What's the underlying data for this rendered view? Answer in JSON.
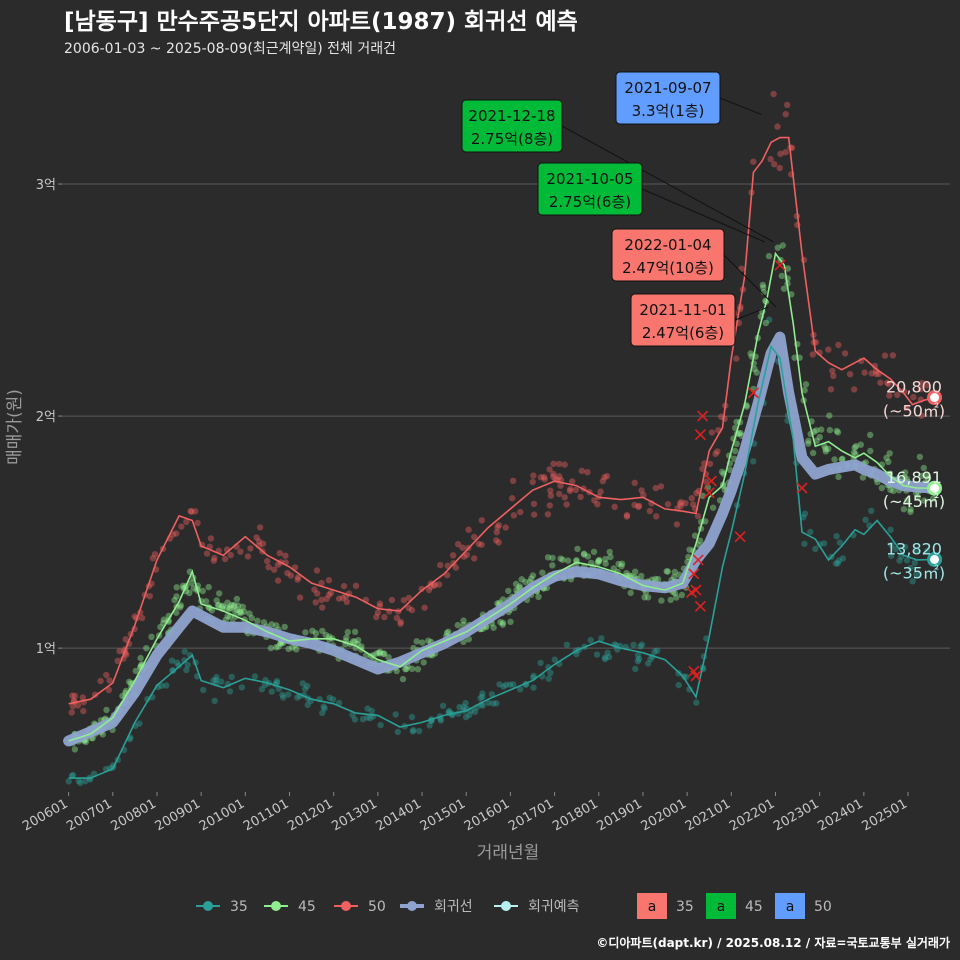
{
  "title": "[남동구] 만수주공5단지 아파트(1987) 회귀선 예측",
  "subtitle": "2006-01-03 ~ 2025-08-09(최근계약일) 전체 거래건",
  "credit": "©디아파트(dapt.kr) / 2025.08.12 / 자료=국토교통부 실거래가",
  "colors": {
    "s35": "#2aa198",
    "s45": "#90ee90",
    "s50": "#f06060",
    "regression": "#8ea3cf",
    "forecast": "#b7f0f0",
    "label35": "#9fe7e7",
    "label45": "#dff5df",
    "label50": "#f3d7d7",
    "box35": "#f8766d",
    "box45": "#00ba38",
    "box50": "#619cff",
    "grid": "#5a5a5a",
    "bg": "#2b2b2b"
  },
  "chart_data": {
    "type": "line",
    "xlabel": "거래년월",
    "ylabel": "매매가(원)",
    "x_ticks": [
      "200601",
      "200701",
      "200801",
      "200901",
      "201001",
      "201101",
      "201201",
      "201301",
      "201401",
      "201501",
      "201601",
      "201701",
      "201801",
      "201901",
      "202001",
      "202101",
      "202201",
      "202301",
      "202401",
      "202501"
    ],
    "y_ticks": [
      {
        "value": 10000,
        "label": "1억"
      },
      {
        "value": 20000,
        "label": "2억"
      },
      {
        "value": 30000,
        "label": "3억"
      }
    ],
    "x_range": [
      2005.85,
      2025.95
    ],
    "y_range": [
      3800,
      35000
    ],
    "series": [
      {
        "name": "35",
        "key": "s35",
        "points": [
          [
            2006.0,
            4400
          ],
          [
            2006.5,
            4400
          ],
          [
            2007.0,
            4800
          ],
          [
            2007.5,
            6800
          ],
          [
            2008.0,
            8400
          ],
          [
            2008.5,
            9200
          ],
          [
            2008.8,
            9700
          ],
          [
            2009.0,
            8600
          ],
          [
            2009.5,
            8300
          ],
          [
            2010.0,
            8700
          ],
          [
            2010.5,
            8500
          ],
          [
            2011.0,
            8200
          ],
          [
            2011.5,
            7800
          ],
          [
            2012.0,
            7600
          ],
          [
            2012.5,
            7200
          ],
          [
            2013.0,
            7100
          ],
          [
            2013.5,
            6600
          ],
          [
            2014.0,
            6800
          ],
          [
            2014.5,
            7100
          ],
          [
            2015.0,
            7300
          ],
          [
            2015.5,
            7800
          ],
          [
            2016.0,
            8200
          ],
          [
            2016.5,
            8600
          ],
          [
            2017.0,
            9300
          ],
          [
            2017.5,
            9900
          ],
          [
            2018.0,
            10300
          ],
          [
            2018.5,
            10000
          ],
          [
            2019.0,
            9800
          ],
          [
            2019.5,
            9500
          ],
          [
            2019.9,
            8800
          ],
          [
            2020.2,
            7900
          ],
          [
            2020.5,
            10500
          ],
          [
            2020.8,
            13500
          ],
          [
            2021.0,
            15000
          ],
          [
            2021.3,
            17500
          ],
          [
            2021.6,
            20500
          ],
          [
            2021.9,
            23000
          ],
          [
            2022.1,
            22500
          ],
          [
            2022.4,
            19000
          ],
          [
            2022.6,
            15000
          ],
          [
            2022.9,
            14700
          ],
          [
            2023.2,
            13800
          ],
          [
            2023.5,
            14400
          ],
          [
            2023.8,
            15100
          ],
          [
            2024.0,
            14900
          ],
          [
            2024.3,
            15500
          ],
          [
            2024.6,
            14800
          ],
          [
            2024.9,
            14000
          ],
          [
            2025.2,
            13800
          ],
          [
            2025.6,
            13820
          ]
        ]
      },
      {
        "name": "45",
        "key": "s45",
        "points": [
          [
            2006.0,
            6000
          ],
          [
            2006.5,
            6300
          ],
          [
            2007.0,
            7000
          ],
          [
            2007.5,
            8600
          ],
          [
            2008.0,
            10400
          ],
          [
            2008.5,
            12000
          ],
          [
            2008.8,
            13300
          ],
          [
            2009.0,
            11900
          ],
          [
            2009.5,
            11600
          ],
          [
            2010.0,
            11200
          ],
          [
            2010.5,
            10700
          ],
          [
            2011.0,
            10300
          ],
          [
            2011.5,
            10400
          ],
          [
            2012.0,
            10400
          ],
          [
            2012.5,
            10100
          ],
          [
            2013.0,
            9500
          ],
          [
            2013.5,
            9200
          ],
          [
            2014.0,
            9900
          ],
          [
            2014.5,
            10300
          ],
          [
            2015.0,
            10700
          ],
          [
            2015.5,
            11300
          ],
          [
            2016.0,
            11900
          ],
          [
            2016.5,
            12600
          ],
          [
            2017.0,
            13200
          ],
          [
            2017.5,
            13700
          ],
          [
            2018.0,
            13500
          ],
          [
            2018.5,
            13200
          ],
          [
            2019.0,
            12700
          ],
          [
            2019.5,
            12500
          ],
          [
            2019.9,
            12800
          ],
          [
            2020.2,
            14500
          ],
          [
            2020.5,
            16500
          ],
          [
            2020.8,
            17000
          ],
          [
            2021.0,
            18500
          ],
          [
            2021.3,
            20500
          ],
          [
            2021.6,
            23500
          ],
          [
            2021.8,
            25000
          ],
          [
            2022.0,
            27000
          ],
          [
            2022.2,
            26500
          ],
          [
            2022.4,
            24000
          ],
          [
            2022.6,
            21000
          ],
          [
            2022.9,
            18700
          ],
          [
            2023.2,
            18900
          ],
          [
            2023.5,
            18500
          ],
          [
            2023.8,
            18200
          ],
          [
            2024.0,
            18400
          ],
          [
            2024.3,
            18000
          ],
          [
            2024.6,
            17400
          ],
          [
            2024.9,
            17000
          ],
          [
            2025.2,
            16900
          ],
          [
            2025.6,
            16891
          ]
        ]
      },
      {
        "name": "50",
        "key": "s50",
        "points": [
          [
            2006.0,
            7600
          ],
          [
            2006.5,
            7800
          ],
          [
            2007.0,
            8500
          ],
          [
            2007.5,
            11000
          ],
          [
            2008.0,
            13800
          ],
          [
            2008.5,
            15700
          ],
          [
            2008.8,
            15500
          ],
          [
            2009.0,
            14400
          ],
          [
            2009.5,
            14000
          ],
          [
            2010.0,
            14800
          ],
          [
            2010.5,
            14000
          ],
          [
            2011.0,
            13500
          ],
          [
            2011.5,
            12800
          ],
          [
            2012.0,
            12500
          ],
          [
            2012.5,
            12200
          ],
          [
            2013.0,
            11700
          ],
          [
            2013.5,
            11600
          ],
          [
            2014.0,
            12500
          ],
          [
            2014.5,
            13200
          ],
          [
            2015.0,
            14200
          ],
          [
            2015.5,
            15200
          ],
          [
            2016.0,
            16000
          ],
          [
            2016.5,
            16800
          ],
          [
            2017.0,
            17200
          ],
          [
            2017.5,
            17000
          ],
          [
            2018.0,
            16500
          ],
          [
            2018.5,
            16400
          ],
          [
            2019.0,
            16500
          ],
          [
            2019.5,
            16000
          ],
          [
            2019.9,
            15900
          ],
          [
            2020.2,
            15800
          ],
          [
            2020.5,
            18500
          ],
          [
            2020.8,
            19500
          ],
          [
            2021.0,
            22500
          ],
          [
            2021.3,
            26000
          ],
          [
            2021.5,
            30500
          ],
          [
            2021.7,
            31000
          ],
          [
            2021.9,
            31800
          ],
          [
            2022.1,
            32000
          ],
          [
            2022.3,
            32000
          ],
          [
            2022.6,
            27000
          ],
          [
            2022.9,
            22800
          ],
          [
            2023.2,
            22300
          ],
          [
            2023.5,
            22000
          ],
          [
            2023.8,
            22300
          ],
          [
            2024.0,
            22500
          ],
          [
            2024.3,
            22000
          ],
          [
            2024.6,
            21600
          ],
          [
            2024.9,
            21000
          ],
          [
            2025.1,
            20500
          ],
          [
            2025.4,
            20700
          ],
          [
            2025.6,
            20800
          ]
        ]
      }
    ],
    "regression": {
      "name": "회귀선",
      "points": [
        [
          2006.0,
          6000
        ],
        [
          2006.5,
          6400
        ],
        [
          2007.0,
          6800
        ],
        [
          2007.5,
          8100
        ],
        [
          2008.0,
          9700
        ],
        [
          2008.5,
          10900
        ],
        [
          2008.8,
          11600
        ],
        [
          2009.0,
          11400
        ],
        [
          2009.5,
          10900
        ],
        [
          2010.0,
          10900
        ],
        [
          2010.5,
          10700
        ],
        [
          2011.0,
          10400
        ],
        [
          2011.5,
          10200
        ],
        [
          2012.0,
          9900
        ],
        [
          2012.5,
          9500
        ],
        [
          2013.0,
          9100
        ],
        [
          2013.5,
          9400
        ],
        [
          2014.0,
          9800
        ],
        [
          2014.5,
          10200
        ],
        [
          2015.0,
          10700
        ],
        [
          2015.5,
          11300
        ],
        [
          2016.0,
          11900
        ],
        [
          2016.5,
          12600
        ],
        [
          2017.0,
          13100
        ],
        [
          2017.5,
          13300
        ],
        [
          2018.0,
          13200
        ],
        [
          2018.5,
          12900
        ],
        [
          2019.0,
          12700
        ],
        [
          2019.5,
          12600
        ],
        [
          2019.9,
          12800
        ],
        [
          2020.2,
          13800
        ],
        [
          2020.5,
          14500
        ],
        [
          2020.8,
          15800
        ],
        [
          2021.0,
          16800
        ],
        [
          2021.3,
          18500
        ],
        [
          2021.6,
          20500
        ],
        [
          2021.9,
          22700
        ],
        [
          2022.1,
          23400
        ],
        [
          2022.3,
          21000
        ],
        [
          2022.6,
          18200
        ],
        [
          2022.9,
          17500
        ],
        [
          2023.2,
          17700
        ],
        [
          2023.5,
          17800
        ],
        [
          2023.8,
          17900
        ],
        [
          2024.0,
          17700
        ],
        [
          2024.3,
          17500
        ],
        [
          2024.6,
          17200
        ],
        [
          2024.9,
          17000
        ],
        [
          2025.2,
          16950
        ],
        [
          2025.6,
          16891
        ]
      ]
    },
    "end_labels": [
      {
        "series": "50",
        "value_text": "20,800",
        "area_text": "(~50㎡)",
        "y": 20800
      },
      {
        "series": "45",
        "value_text": "16,891",
        "area_text": "(~45㎡)",
        "y": 16891
      },
      {
        "series": "35",
        "value_text": "13,820",
        "area_text": "(~35㎡)",
        "y": 13820
      }
    ],
    "callouts": [
      {
        "date": "2021-09-07",
        "price": "3.3억(1층)",
        "box": "box50",
        "target_x": 2021.68,
        "target_y": 33000
      },
      {
        "date": "2021-12-18",
        "price": "2.75억(8층)",
        "box": "box45",
        "target_x": 2021.96,
        "target_y": 27500
      },
      {
        "date": "2021-10-05",
        "price": "2.75억(6층)",
        "box": "box45",
        "target_x": 2021.76,
        "target_y": 27500
      },
      {
        "date": "2022-01-04",
        "price": "2.47억(10층)",
        "box": "box35",
        "target_x": 2022.01,
        "target_y": 24700
      },
      {
        "date": "2021-11-01",
        "price": "2.47억(6층)",
        "box": "box35",
        "target_x": 2021.84,
        "target_y": 24700
      }
    ],
    "legend": {
      "lines": [
        {
          "label": "35",
          "key": "s35"
        },
        {
          "label": "45",
          "key": "s45"
        },
        {
          "label": "50",
          "key": "s50"
        },
        {
          "label": "회귀선",
          "key": "regression"
        },
        {
          "label": "회귀예측",
          "key": "forecast"
        }
      ],
      "boxes": [
        {
          "glyph": "a",
          "label": "35",
          "key": "box35"
        },
        {
          "glyph": "a",
          "label": "45",
          "key": "box45"
        },
        {
          "glyph": "a",
          "label": "50",
          "key": "box50"
        }
      ]
    }
  }
}
